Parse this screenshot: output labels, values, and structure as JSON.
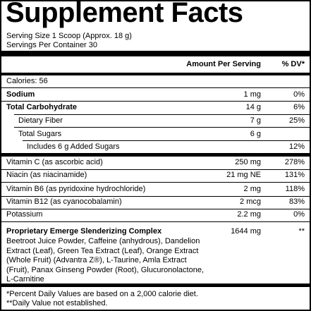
{
  "title": "Supplement Facts",
  "serving_size": "Serving Size 1 Scoop (Approx. 18 g)",
  "servings_per_container": "Servings Per Container 30",
  "header": {
    "amount": "Amount Per Serving",
    "dv": "% DV*"
  },
  "calories": "Calories: 56",
  "rows": [
    {
      "label": "Sodium",
      "amount": "1 mg",
      "dv": "0%"
    },
    {
      "label": "Total Carbohydrate",
      "amount": "14 g",
      "dv": "6%"
    },
    {
      "label": "Dietary Fiber",
      "amount": "7 g",
      "dv": "25%"
    },
    {
      "label": "Total Sugars",
      "amount": "6 g",
      "dv": ""
    },
    {
      "label": "Includes 6 g Added Sugars",
      "amount": "",
      "dv": "12%"
    },
    {
      "label": "Vitamin C (as ascorbic acid)",
      "amount": "250 mg",
      "dv": "278%"
    },
    {
      "label": "Niacin (as niacinamide)",
      "amount": "21 mg NE",
      "dv": "131%"
    },
    {
      "label": "Vitamin B6 (as pyridoxine hydrochloride)",
      "amount": "2 mg",
      "dv": "118%"
    },
    {
      "label": "Vitamin B12 (as cyanocobalamin)",
      "amount": "2 mcg",
      "dv": "83%"
    },
    {
      "label": "Potassium",
      "amount": "2.2 mg",
      "dv": "0%"
    }
  ],
  "blend": {
    "name": "Proprietary Emerge Slenderizing Complex",
    "amount": "1644 mg",
    "dv": "**",
    "ingredients": "Beetroot Juice Powder, Caffeine (anhydrous), Dandelion Extract (Leaf), Green Tea Extract (Leaf),  Orange Extract (Whole Fruit) (Advantra Z®), L-Taurine, Amla Extract (Fruit), Panax Ginseng Powder (Root), Glucuronolactone, L-Carnitine"
  },
  "footnotes": [
    "*Percent Daily Values are based on a 2,000 calorie diet.",
    "**Daily Value not established."
  ]
}
